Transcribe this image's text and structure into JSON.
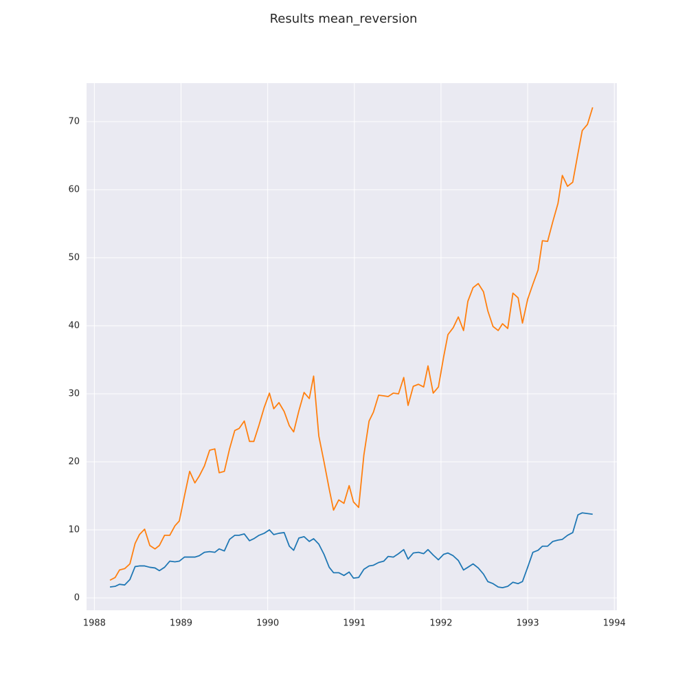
{
  "chart_data": {
    "type": "line",
    "title": "Results mean_reversion",
    "x": [
      1988.18,
      1988.24,
      1988.29,
      1988.35,
      1988.41,
      1988.47,
      1988.52,
      1988.58,
      1988.64,
      1988.7,
      1988.75,
      1988.81,
      1988.87,
      1988.93,
      1988.98,
      1989.04,
      1989.1,
      1989.16,
      1989.21,
      1989.27,
      1989.33,
      1989.39,
      1989.44,
      1989.5,
      1989.56,
      1989.62,
      1989.67,
      1989.73,
      1989.79,
      1989.84,
      1989.9,
      1989.96,
      1990.02,
      1990.07,
      1990.13,
      1990.19,
      1990.25,
      1990.3,
      1990.36,
      1990.42,
      1990.48,
      1990.53,
      1990.59,
      1990.65,
      1990.71,
      1990.76,
      1990.82,
      1990.88,
      1990.94,
      1990.99,
      1991.05,
      1991.11,
      1991.17,
      1991.22,
      1991.28,
      1991.34,
      1991.39,
      1991.45,
      1991.51,
      1991.57,
      1991.62,
      1991.68,
      1991.74,
      1991.8,
      1991.85,
      1991.91,
      1991.97,
      1992.03,
      1992.08,
      1992.14,
      1992.2,
      1992.26,
      1992.31,
      1992.37,
      1992.43,
      1992.49,
      1992.54,
      1992.6,
      1992.66,
      1992.71,
      1992.77,
      1992.83,
      1992.89,
      1992.94,
      1993.0,
      1993.06,
      1993.12,
      1993.17,
      1993.23,
      1993.29,
      1993.35,
      1993.4,
      1993.46,
      1993.52,
      1993.58,
      1993.63,
      1993.69,
      1993.75
    ],
    "series": [
      {
        "color": "#1f77b4",
        "values": [
          1.6,
          1.7,
          2.0,
          1.9,
          2.7,
          4.6,
          4.7,
          4.7,
          4.5,
          4.4,
          4.0,
          4.5,
          5.4,
          5.3,
          5.4,
          6.0,
          6.0,
          6.0,
          6.2,
          6.7,
          6.8,
          6.7,
          7.2,
          6.9,
          8.6,
          9.2,
          9.2,
          9.4,
          8.4,
          8.7,
          9.2,
          9.5,
          10.0,
          9.3,
          9.5,
          9.6,
          7.6,
          7.0,
          8.8,
          9.0,
          8.3,
          8.7,
          7.9,
          6.4,
          4.5,
          3.7,
          3.7,
          3.3,
          3.8,
          2.9,
          3.0,
          4.2,
          4.7,
          4.8,
          5.2,
          5.4,
          6.1,
          6.0,
          6.5,
          7.1,
          5.7,
          6.6,
          6.7,
          6.5,
          7.1,
          6.3,
          5.6,
          6.4,
          6.6,
          6.2,
          5.5,
          4.1,
          4.5,
          5.0,
          4.4,
          3.5,
          2.4,
          2.1,
          1.6,
          1.5,
          1.7,
          2.3,
          2.1,
          2.4,
          4.5,
          6.7,
          7.0,
          7.6,
          7.6,
          8.3,
          8.5,
          8.6,
          9.2,
          9.6,
          12.2,
          12.5,
          12.4,
          12.3
        ]
      },
      {
        "color": "#ff7f0e",
        "values": [
          2.6,
          3.0,
          4.1,
          4.3,
          5.0,
          8.0,
          9.3,
          10.1,
          7.7,
          7.2,
          7.7,
          9.2,
          9.2,
          10.6,
          11.3,
          15.0,
          18.6,
          16.9,
          17.9,
          19.4,
          21.7,
          21.9,
          18.4,
          18.6,
          21.9,
          24.6,
          24.9,
          26.0,
          23.0,
          23.0,
          25.4,
          28.0,
          30.1,
          27.8,
          28.7,
          27.4,
          25.3,
          24.4,
          27.5,
          30.2,
          29.3,
          32.6,
          23.8,
          20.0,
          16.0,
          12.9,
          14.4,
          13.9,
          16.5,
          14.1,
          13.3,
          21.0,
          26.0,
          27.3,
          29.8,
          29.7,
          29.6,
          30.1,
          30.0,
          32.4,
          28.3,
          31.1,
          31.4,
          31.0,
          34.1,
          30.1,
          31.0,
          35.4,
          38.7,
          39.7,
          41.3,
          39.3,
          43.6,
          45.6,
          46.2,
          45.0,
          42.2,
          39.9,
          39.3,
          40.3,
          39.6,
          44.8,
          44.1,
          40.4,
          43.9,
          46.1,
          48.2,
          52.5,
          52.4,
          55.3,
          58.0,
          62.1,
          60.5,
          61.1,
          65.3,
          68.7,
          69.6,
          72.1
        ]
      }
    ],
    "xlim": [
      1987.91,
      1994.03
    ],
    "xticks": [
      1988,
      1989,
      1990,
      1991,
      1992,
      1993,
      1994
    ],
    "ylim": [
      -1.82,
      75.66
    ],
    "yticks": [
      0,
      10,
      20,
      30,
      40,
      50,
      60,
      70
    ],
    "grid": true,
    "background": "#eaeaf2"
  }
}
